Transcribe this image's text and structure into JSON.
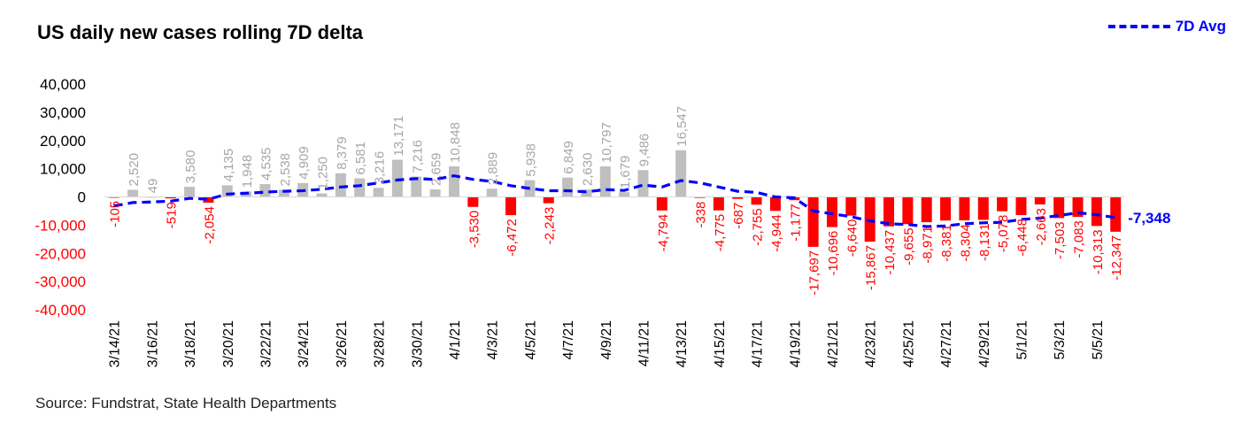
{
  "chart_data": {
    "type": "bar",
    "title": "US daily new cases rolling 7D delta",
    "source": "Source: Fundstrat,  State Health Departments",
    "legend": [
      {
        "name": "7D Avg",
        "style": "dashed-line",
        "color": "#0000ff"
      }
    ],
    "ylim": [
      -40000,
      40000
    ],
    "yticks": [
      40000,
      30000,
      20000,
      10000,
      0,
      -10000,
      -20000,
      -30000,
      -40000
    ],
    "ytick_labels": [
      "40,000",
      "30,000",
      "20,000",
      "10,000",
      "0",
      "-10,000",
      "-20,000",
      "-30,000",
      "-40,000"
    ],
    "dates": [
      "3/14/21",
      "3/15/21",
      "3/16/21",
      "3/17/21",
      "3/18/21",
      "3/19/21",
      "3/20/21",
      "3/21/21",
      "3/22/21",
      "3/23/21",
      "3/24/21",
      "3/25/21",
      "3/26/21",
      "3/27/21",
      "3/28/21",
      "3/29/21",
      "3/30/21",
      "3/31/21",
      "4/1/21",
      "4/2/21",
      "4/3/21",
      "4/4/21",
      "4/5/21",
      "4/6/21",
      "4/7/21",
      "4/8/21",
      "4/9/21",
      "4/10/21",
      "4/11/21",
      "4/12/21",
      "4/13/21",
      "4/14/21",
      "4/15/21",
      "4/16/21",
      "4/17/21",
      "4/18/21",
      "4/19/21",
      "4/20/21",
      "4/21/21",
      "4/22/21",
      "4/23/21",
      "4/24/21",
      "4/25/21",
      "4/26/21",
      "4/27/21",
      "4/28/21",
      "4/29/21",
      "4/30/21",
      "5/1/21",
      "5/2/21",
      "5/3/21",
      "5/4/21",
      "5/5/21",
      "5/6/21"
    ],
    "x_tick_labels": [
      "3/14/21",
      "3/16/21",
      "3/18/21",
      "3/20/21",
      "3/22/21",
      "3/24/21",
      "3/26/21",
      "3/28/21",
      "3/30/21",
      "4/1/21",
      "4/3/21",
      "4/5/21",
      "4/7/21",
      "4/9/21",
      "4/11/21",
      "4/13/21",
      "4/15/21",
      "4/17/21",
      "4/19/21",
      "4/21/21",
      "4/23/21",
      "4/25/21",
      "4/27/21",
      "4/29/21",
      "5/1/21",
      "5/3/21",
      "5/5/21"
    ],
    "values": [
      -105,
      2520,
      49,
      -519,
      3580,
      -2054,
      4135,
      1948,
      4535,
      2538,
      4909,
      1250,
      8379,
      6581,
      3216,
      13171,
      7216,
      2659,
      10848,
      -3530,
      2889,
      -6472,
      5938,
      -2243,
      6849,
      2630,
      10797,
      1679,
      9486,
      -4794,
      16547,
      -338,
      -4775,
      -687,
      -2755,
      -4944,
      -1177,
      -17697,
      -10696,
      -6640,
      -15867,
      -10437,
      -9655,
      -8971,
      -8381,
      -8304,
      -8131,
      -5078,
      -6448,
      -2663,
      -7503,
      -7083,
      -10313,
      -12347
    ],
    "value_labels": [
      "-105",
      "2,520",
      "49",
      "-519",
      "3,580",
      "-2,054",
      "4,135",
      "1,948",
      "4,535",
      "2,538",
      "4,909",
      "1,250",
      "8,379",
      "6,581",
      "3,216",
      "13,171",
      "7,216",
      "2,659",
      "10,848",
      "-3,530",
      "2,889",
      "-6,472",
      "5,938",
      "-2,243",
      "6,849",
      "2,630",
      "10,797",
      "1,679",
      "9,486",
      "-4,794",
      "16,547",
      "-338",
      "-4,775",
      "-687",
      "-2,755",
      "-4,944",
      "-1,177",
      "-17,697",
      "-10,696",
      "-6,640",
      "-15,867",
      "-10,437",
      "-9,655",
      "-8,971",
      "-8,381",
      "-8,304",
      "-8,131",
      "-5,078",
      "-6,448",
      "-2,663",
      "-7,503",
      "-7,083",
      "-10,313",
      "-12,347"
    ],
    "avg_7d": [
      -3200,
      -2000,
      -1800,
      -1500,
      -500,
      -800,
      1000,
      1300,
      1700,
      2000,
      2200,
      2700,
      3500,
      4000,
      5000,
      6000,
      6500,
      6200,
      7500,
      6200,
      5500,
      4000,
      3000,
      2200,
      2200,
      1800,
      2600,
      2300,
      4200,
      3500,
      5800,
      5000,
      3500,
      2000,
      1600,
      0,
      -300,
      -5000,
      -6000,
      -7000,
      -8500,
      -9500,
      -9800,
      -10500,
      -10300,
      -9500,
      -9200,
      -9000,
      -8000,
      -7500,
      -6600,
      -5600,
      -6300,
      -7348
    ],
    "last_avg_label": "-7,348",
    "colors": {
      "positive": "#bfbfbf",
      "negative": "#ff0000",
      "avg": "#0000ff"
    }
  }
}
